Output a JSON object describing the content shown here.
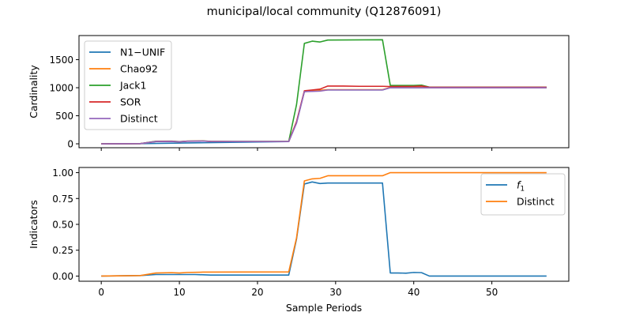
{
  "figure": {
    "title": "municipal/local community (Q12876091)"
  },
  "chart_data": [
    {
      "type": "line",
      "ylabel": "Cardinality",
      "xlabel": "",
      "xlim": [
        -2.85,
        59.85
      ],
      "ylim": [
        -70,
        1930
      ],
      "xticks": [
        0,
        10,
        20,
        30,
        40,
        50
      ],
      "yticks": [
        0,
        500,
        1000,
        1500
      ],
      "show_xticklabels": false,
      "legend": "upper left",
      "series": [
        {
          "name": "N1−UNIF",
          "color": "#1f77b4",
          "points": [
            [
              0,
              0
            ],
            [
              5,
              3
            ],
            [
              24,
              40
            ],
            [
              25,
              380
            ],
            [
              26,
              930
            ],
            [
              27,
              940
            ],
            [
              28,
              950
            ],
            [
              29,
              960
            ],
            [
              36,
              960
            ],
            [
              37,
              1000
            ],
            [
              42,
              1000
            ],
            [
              57,
              1000
            ]
          ]
        },
        {
          "name": "Chao92",
          "color": "#ff7f0e",
          "points": [
            [
              0,
              0
            ],
            [
              5,
              3
            ],
            [
              7,
              40
            ],
            [
              9,
              42
            ],
            [
              10,
              35
            ],
            [
              11,
              45
            ],
            [
              13,
              48
            ],
            [
              14,
              42
            ],
            [
              17,
              40
            ],
            [
              24,
              40
            ],
            [
              25,
              390
            ],
            [
              26,
              935
            ],
            [
              27,
              945
            ],
            [
              28,
              955
            ],
            [
              29,
              965
            ],
            [
              36,
              965
            ],
            [
              37,
              1005
            ],
            [
              40,
              1010
            ],
            [
              42,
              1002
            ],
            [
              57,
              1002
            ]
          ]
        },
        {
          "name": "Jack1",
          "color": "#2ca02c",
          "points": [
            [
              0,
              0
            ],
            [
              5,
              3
            ],
            [
              7,
              45
            ],
            [
              9,
              48
            ],
            [
              10,
              38
            ],
            [
              11,
              48
            ],
            [
              13,
              50
            ],
            [
              14,
              44
            ],
            [
              17,
              42
            ],
            [
              24,
              42
            ],
            [
              25,
              700
            ],
            [
              26,
              1790
            ],
            [
              27,
              1830
            ],
            [
              28,
              1815
            ],
            [
              29,
              1850
            ],
            [
              36,
              1855
            ],
            [
              37,
              1040
            ],
            [
              40,
              1040
            ],
            [
              41,
              1045
            ],
            [
              42,
              1010
            ],
            [
              57,
              1010
            ]
          ]
        },
        {
          "name": "SOR",
          "color": "#d62728",
          "points": [
            [
              0,
              0
            ],
            [
              5,
              3
            ],
            [
              7,
              43
            ],
            [
              9,
              46
            ],
            [
              10,
              37
            ],
            [
              11,
              47
            ],
            [
              13,
              49
            ],
            [
              14,
              43
            ],
            [
              17,
              41
            ],
            [
              24,
              41
            ],
            [
              25,
              395
            ],
            [
              26,
              945
            ],
            [
              27,
              960
            ],
            [
              28,
              975
            ],
            [
              29,
              1030
            ],
            [
              31,
              1030
            ],
            [
              33,
              1025
            ],
            [
              36,
              1025
            ],
            [
              37,
              1020
            ],
            [
              40,
              1025
            ],
            [
              41,
              1030
            ],
            [
              42,
              1008
            ],
            [
              57,
              1008
            ]
          ]
        },
        {
          "name": "Distinct",
          "color": "#9467bd",
          "points": [
            [
              0,
              0
            ],
            [
              5,
              3
            ],
            [
              7,
              40
            ],
            [
              9,
              42
            ],
            [
              10,
              35
            ],
            [
              11,
              45
            ],
            [
              13,
              48
            ],
            [
              14,
              42
            ],
            [
              17,
              40
            ],
            [
              24,
              40
            ],
            [
              25,
              370
            ],
            [
              26,
              930
            ],
            [
              27,
              935
            ],
            [
              28,
              940
            ],
            [
              29,
              960
            ],
            [
              36,
              960
            ],
            [
              37,
              1000
            ],
            [
              40,
              1000
            ],
            [
              42,
              1000
            ],
            [
              57,
              1000
            ]
          ]
        }
      ]
    },
    {
      "type": "line",
      "ylabel": "Indicators",
      "xlabel": "Sample Periods",
      "xlim": [
        -2.85,
        59.85
      ],
      "ylim": [
        -0.05,
        1.05
      ],
      "xticks": [
        0,
        10,
        20,
        30,
        40,
        50
      ],
      "yticks": [
        0.0,
        0.25,
        0.5,
        0.75,
        1.0
      ],
      "show_xticklabels": true,
      "legend": "upper right",
      "series": [
        {
          "name": "f",
          "name_sub": "1",
          "color": "#1f77b4",
          "points": [
            [
              0,
              0
            ],
            [
              5,
              0.005
            ],
            [
              7,
              0.015
            ],
            [
              12,
              0.015
            ],
            [
              14,
              0.01
            ],
            [
              24,
              0.01
            ],
            [
              25,
              0.36
            ],
            [
              26,
              0.89
            ],
            [
              27,
              0.91
            ],
            [
              28,
              0.895
            ],
            [
              29,
              0.9
            ],
            [
              36,
              0.9
            ],
            [
              37,
              0.03
            ],
            [
              38,
              0.03
            ],
            [
              39,
              0.028
            ],
            [
              40,
              0.035
            ],
            [
              41,
              0.033
            ],
            [
              42,
              0.0
            ],
            [
              57,
              0.0
            ]
          ]
        },
        {
          "name": "Distinct",
          "color": "#ff7f0e",
          "points": [
            [
              0,
              0
            ],
            [
              5,
              0.005
            ],
            [
              7,
              0.03
            ],
            [
              9,
              0.033
            ],
            [
              10,
              0.03
            ],
            [
              11,
              0.035
            ],
            [
              13,
              0.038
            ],
            [
              24,
              0.04
            ],
            [
              25,
              0.37
            ],
            [
              26,
              0.92
            ],
            [
              27,
              0.94
            ],
            [
              28,
              0.945
            ],
            [
              29,
              0.97
            ],
            [
              36,
              0.97
            ],
            [
              37,
              1.0
            ],
            [
              57,
              1.0
            ]
          ]
        }
      ]
    }
  ]
}
